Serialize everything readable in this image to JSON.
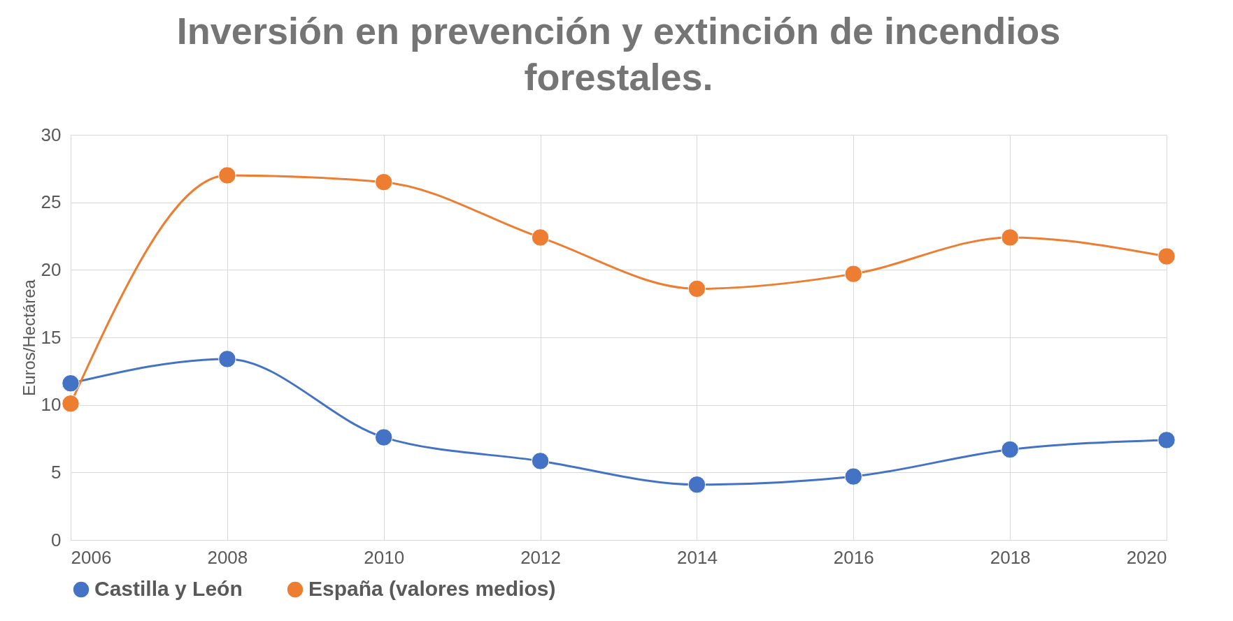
{
  "chart_data": {
    "type": "line",
    "title": "Inversión en prevención y extinción de incendios forestales.",
    "ylabel": "Euros/Hectárea",
    "x": [
      2006,
      2008,
      2010,
      2012,
      2014,
      2016,
      2018,
      2020
    ],
    "series": [
      {
        "name": "Castilla y León",
        "color": "#4472c4",
        "values": [
          11.6,
          13.4,
          7.6,
          5.85,
          4.1,
          4.7,
          6.7,
          7.4
        ]
      },
      {
        "name": "España (valores medios)",
        "color": "#ed7d31",
        "values": [
          10.1,
          27.0,
          26.5,
          22.4,
          18.6,
          19.7,
          22.4,
          21.0
        ]
      }
    ],
    "xlim": [
      2006,
      2020
    ],
    "xticks": [
      2006,
      2008,
      2010,
      2012,
      2014,
      2016,
      2018,
      2020
    ],
    "ylim": [
      0,
      30
    ],
    "yticks": [
      0,
      5,
      10,
      15,
      20,
      25,
      30
    ],
    "grid": true,
    "legend": "bottom",
    "marker": "circle",
    "line_style": "solid"
  }
}
